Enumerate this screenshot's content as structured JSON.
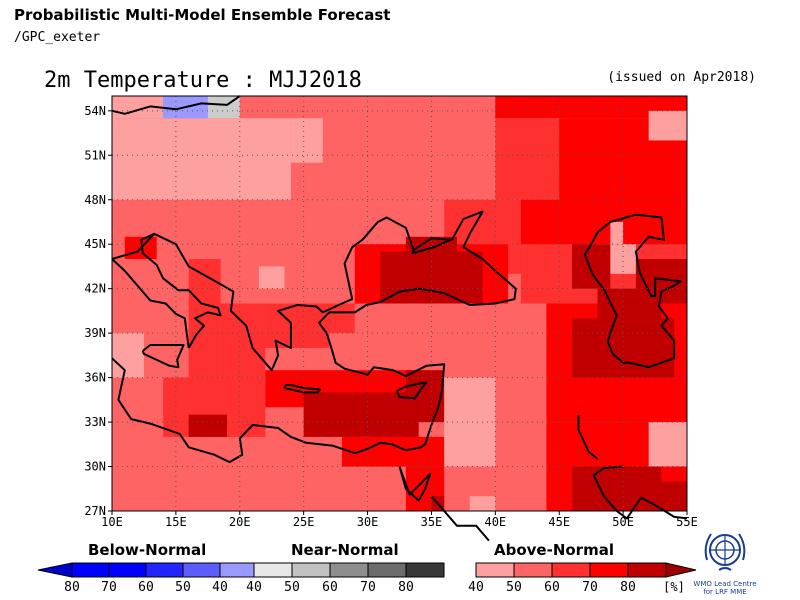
{
  "header": {
    "title": "Probabilistic Multi-Model Ensemble Forecast",
    "subtitle": "/GPC_exeter",
    "map_title": "2m Temperature : MJJ2018",
    "issued": "(issued on Apr2018)"
  },
  "map": {
    "lon_range": [
      10,
      55
    ],
    "lat_range": [
      27,
      55
    ],
    "lon_ticks": [
      "10E",
      "15E",
      "20E",
      "25E",
      "30E",
      "35E",
      "40E",
      "45E",
      "50E",
      "55E"
    ],
    "lat_ticks": [
      "27N",
      "30N",
      "33N",
      "36N",
      "39N",
      "42N",
      "45N",
      "48N",
      "51N",
      "54N"
    ],
    "colors": {
      "above_40": "#ffa0a0",
      "above_50": "#ff6464",
      "above_60": "#ff3030",
      "above_70": "#ff0000",
      "above_80": "#c00000",
      "below_40": "#9999ff",
      "near_40": "#cccccc",
      "coast": "#000000"
    }
  },
  "legend": {
    "below": {
      "title": "Below-Normal",
      "labels": [
        "80",
        "70",
        "60",
        "50",
        "40"
      ],
      "colors": [
        "#0000ff",
        "#0000ff",
        "#2424ff",
        "#5c5cff",
        "#9999ff"
      ],
      "arrow_color": "#0000cc"
    },
    "near": {
      "title": "Near-Normal",
      "labels": [
        "40",
        "50",
        "60",
        "70",
        "80"
      ],
      "colors": [
        "#e8e8e8",
        "#c2c2c2",
        "#8e8e8e",
        "#6c6c6c",
        "#383838"
      ]
    },
    "above": {
      "title": "Above-Normal",
      "labels": [
        "40",
        "50",
        "60",
        "70",
        "80"
      ],
      "unit": "[%]",
      "colors": [
        "#ffa0a0",
        "#ff6464",
        "#ff3030",
        "#ff0000",
        "#c00000"
      ],
      "arrow_color": "#a00000"
    }
  },
  "logo": {
    "caption": "WMO Lead Centre for LRF MME",
    "icon": "wmo-emblem-icon"
  }
}
